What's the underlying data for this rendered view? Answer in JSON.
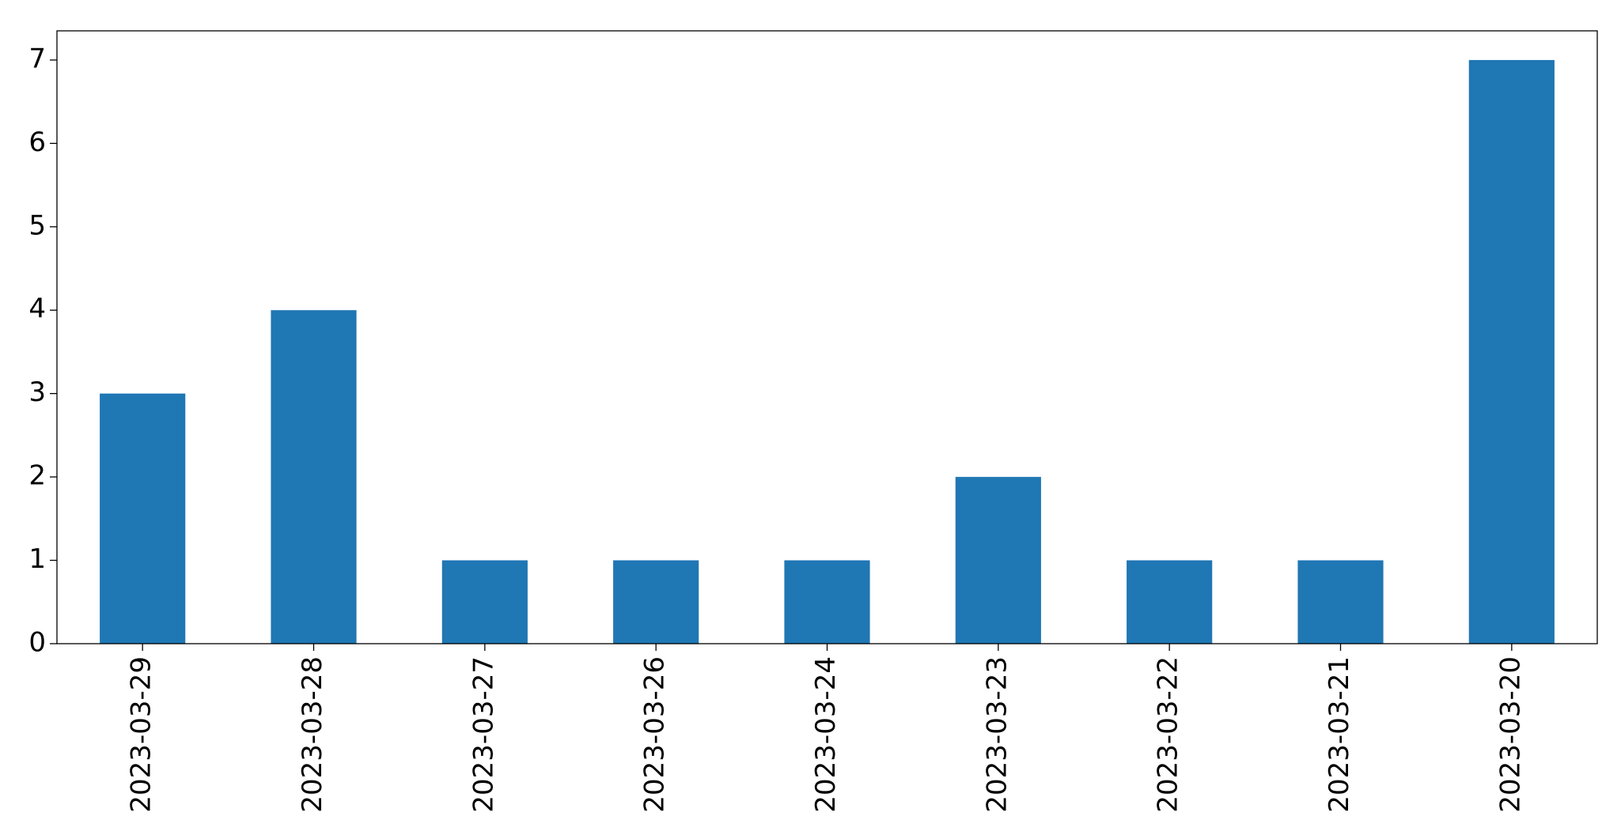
{
  "chart_data": {
    "type": "bar",
    "categories": [
      "2023-03-29",
      "2023-03-28",
      "2023-03-27",
      "2023-03-26",
      "2023-03-24",
      "2023-03-23",
      "2023-03-22",
      "2023-03-21",
      "2023-03-20"
    ],
    "values": [
      3,
      4,
      1,
      1,
      1,
      2,
      1,
      1,
      7
    ],
    "color": "#1f77b4",
    "ylim": [
      0,
      7.35
    ],
    "yticks": [
      0,
      1,
      2,
      3,
      4,
      5,
      6,
      7
    ],
    "grid": false
  }
}
